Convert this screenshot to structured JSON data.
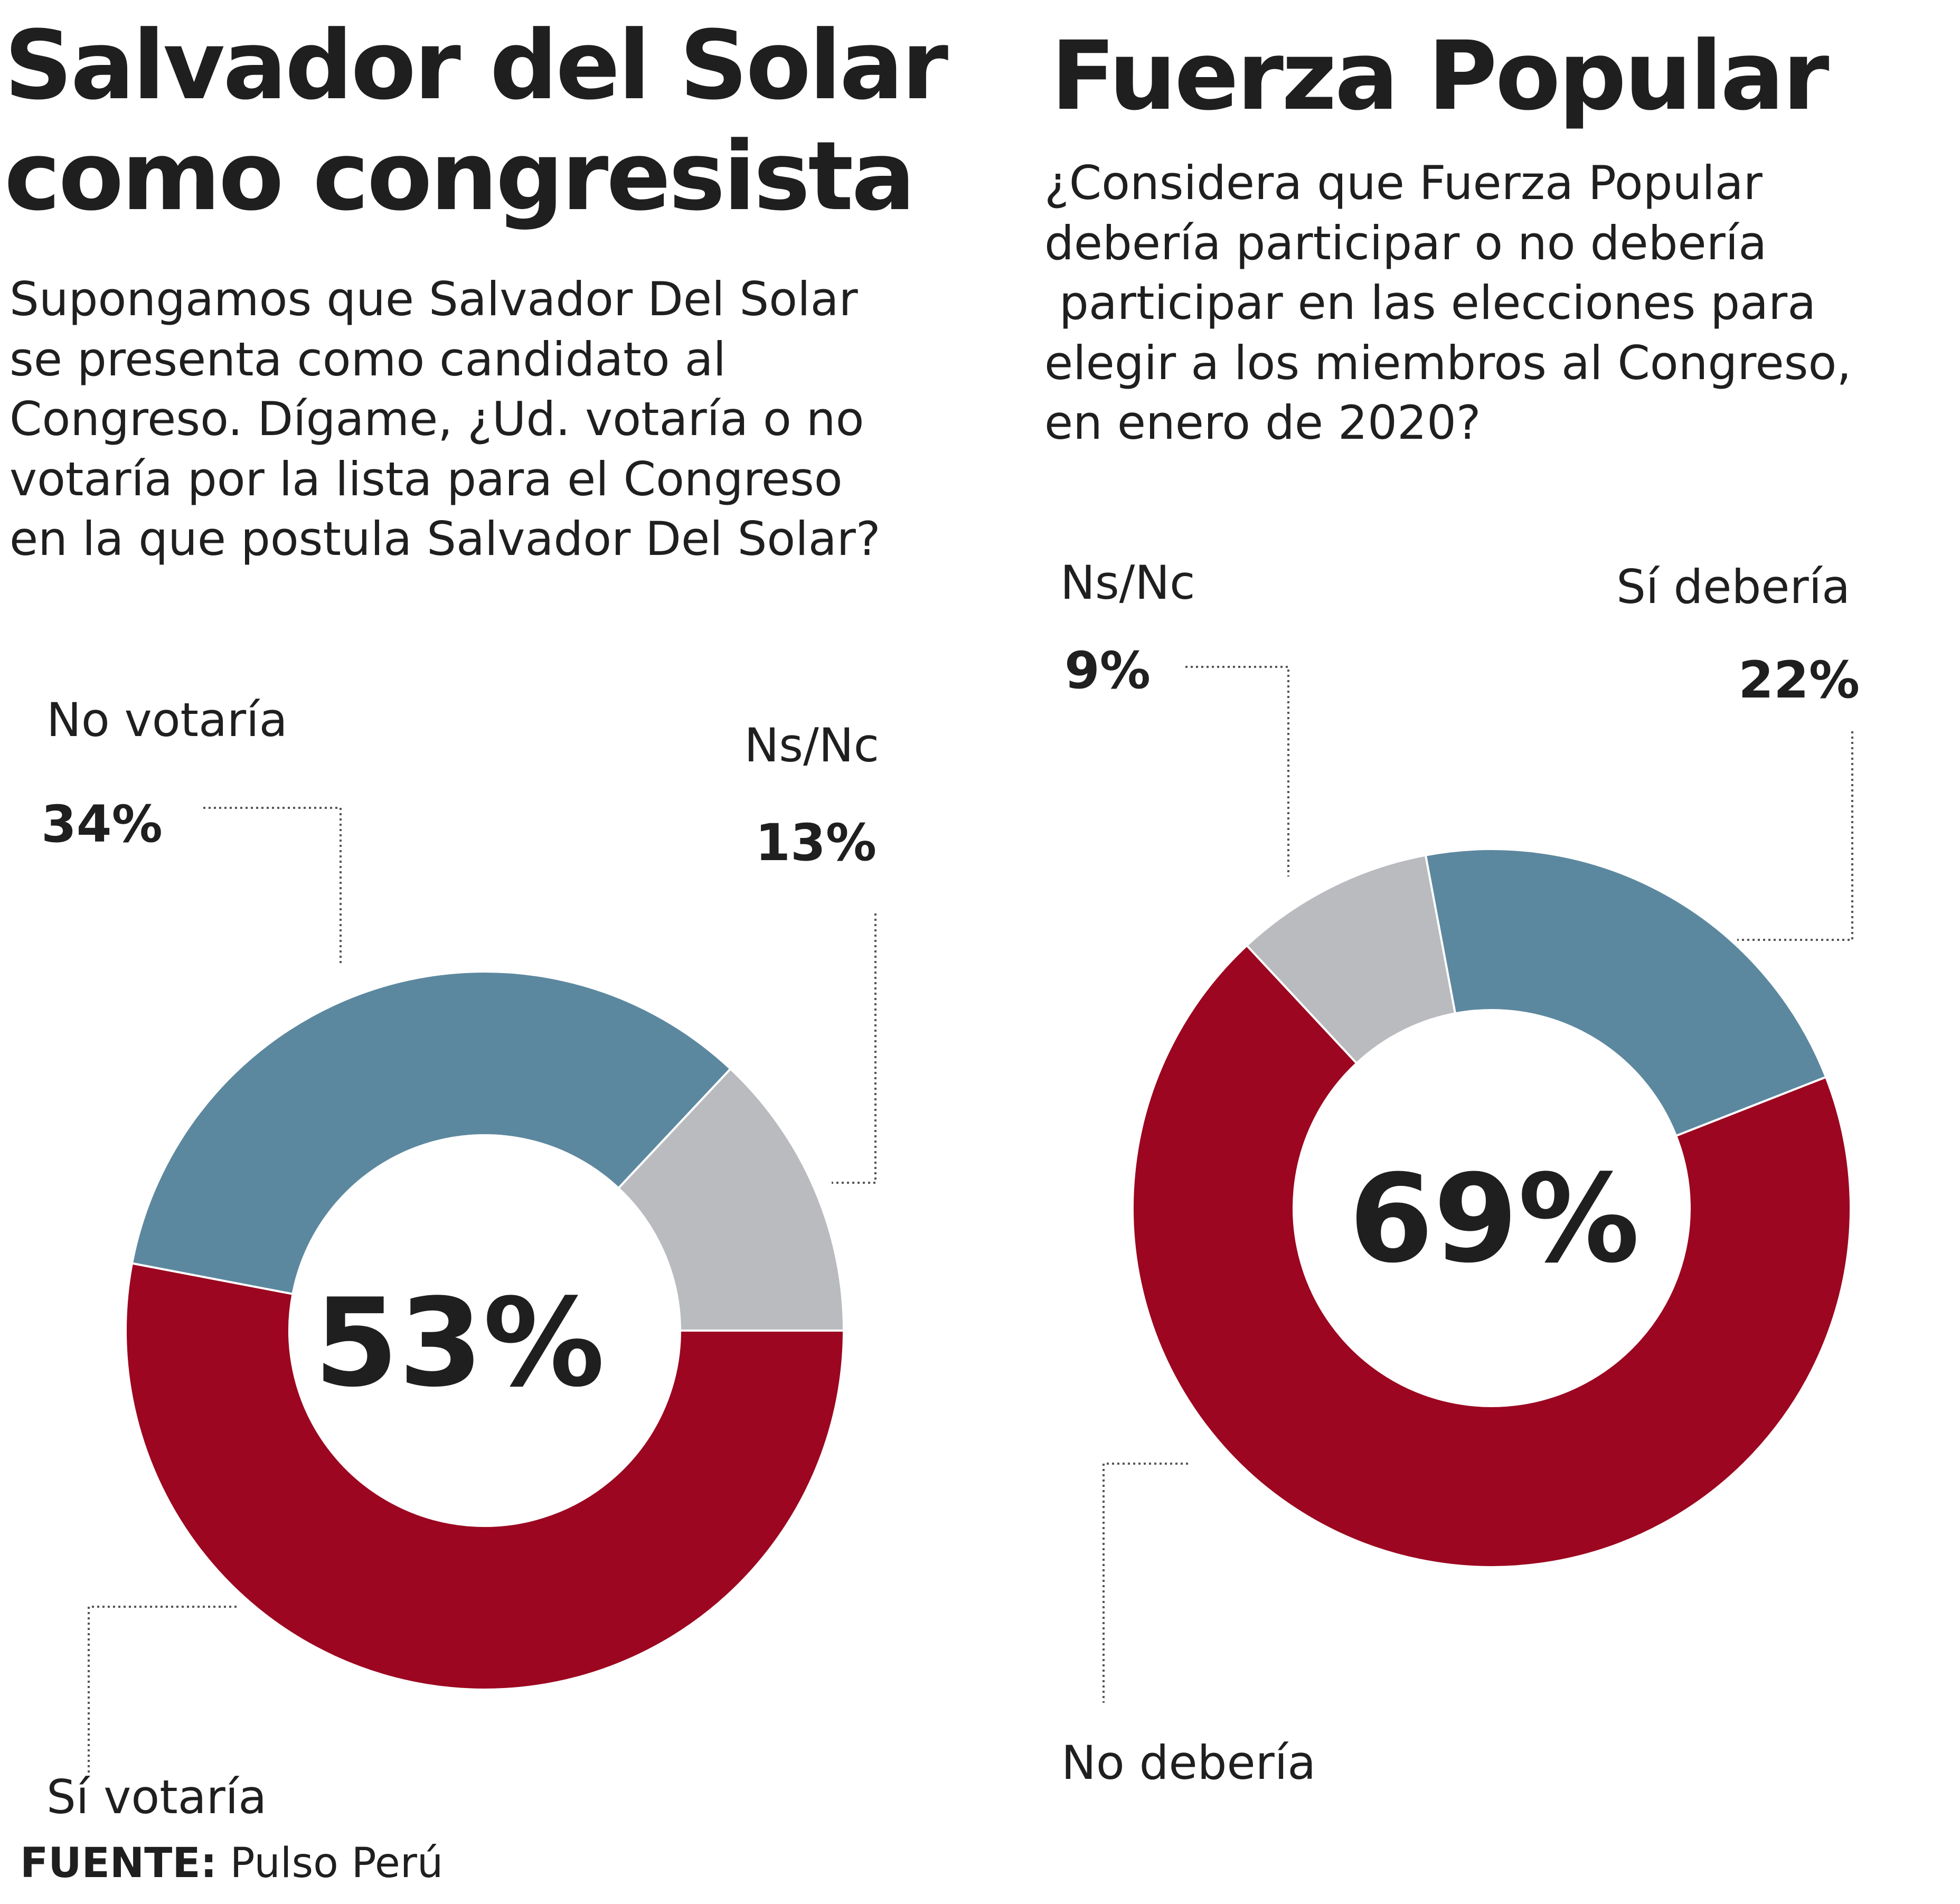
{
  "colors": {
    "si": "#9c0620",
    "no": "#5c889f",
    "ns": "#b9bbbe",
    "text": "#1f1f1f",
    "leader": "#555555"
  },
  "charts": [
    {
      "title_line1": "Salvador del Solar",
      "title_line2": "como congresista",
      "question": "Supongamos que Salvador Del Solar\nse presenta como candidato al\nCongreso. Dígame, ¿Ud. votaría o no\nvotaría por la lista para el Congreso\nen la que postula Salvador Del Solar?",
      "center_value": "53%",
      "labels": [
        {
          "name": "No votaría",
          "value": "34%"
        },
        {
          "name": "Ns/Nc",
          "value": "13%"
        },
        {
          "name": "Sí votaría"
        }
      ]
    },
    {
      "title": "Fuerza Popular",
      "question": "¿Considera que Fuerza Popular\ndebería participar o no debería\n participar en las elecciones para\nelegir a los miembros al Congreso,\nen enero de 2020?",
      "center_value": "69%",
      "labels": [
        {
          "name": "Ns/Nc",
          "value": "9%"
        },
        {
          "name": "Sí debería",
          "value": "22%"
        },
        {
          "name": "No debería"
        }
      ]
    }
  ],
  "chart_data": [
    {
      "type": "pie",
      "title": "Salvador del Solar como congresista",
      "categories": [
        "Sí votaría",
        "No votaría",
        "Ns/Nc"
      ],
      "values": [
        53,
        34,
        13
      ],
      "unit": "%",
      "colors": [
        "#9c0620",
        "#5c889f",
        "#b9bbbe"
      ]
    },
    {
      "type": "pie",
      "title": "Fuerza Popular",
      "categories": [
        "No debería",
        "Sí debería",
        "Ns/Nc"
      ],
      "values": [
        69,
        22,
        9
      ],
      "unit": "%",
      "colors": [
        "#9c0620",
        "#5c889f",
        "#b9bbbe"
      ]
    }
  ],
  "source": {
    "label": "FUENTE:",
    "text": "Pulso Perú"
  }
}
